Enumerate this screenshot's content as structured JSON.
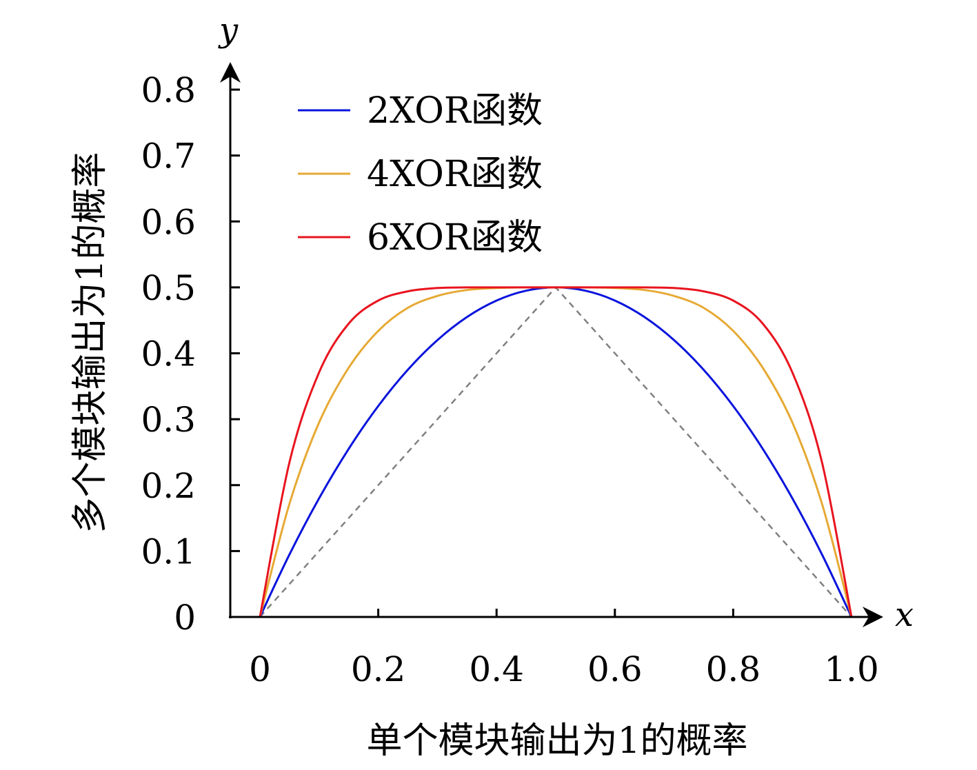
{
  "chart_data": {
    "type": "line",
    "title": "",
    "xlabel": "单个模块输出为1的概率",
    "ylabel": "多个模块输出为1的概率",
    "x_axis_var": "x",
    "y_axis_var": "y",
    "xlim": [
      0,
      1.0
    ],
    "ylim": [
      0,
      0.8
    ],
    "x_ticks": [
      "0",
      "0.2",
      "0.4",
      "0.6",
      "0.8",
      "1.0"
    ],
    "y_ticks": [
      "0",
      "0.1",
      "0.2",
      "0.3",
      "0.4",
      "0.5",
      "0.6",
      "0.7",
      "0.8"
    ],
    "legend_position": "top-left",
    "series": [
      {
        "name": "2XOR函数",
        "color": "#0a14dc",
        "x": [
          0,
          0.05,
          0.1,
          0.15,
          0.2,
          0.25,
          0.3,
          0.35,
          0.4,
          0.45,
          0.5,
          0.55,
          0.6,
          0.65,
          0.7,
          0.75,
          0.8,
          0.85,
          0.9,
          0.95,
          1.0
        ],
        "y": [
          0,
          0.095,
          0.18,
          0.255,
          0.32,
          0.375,
          0.42,
          0.455,
          0.48,
          0.495,
          0.5,
          0.495,
          0.48,
          0.455,
          0.42,
          0.375,
          0.32,
          0.255,
          0.18,
          0.095,
          0
        ]
      },
      {
        "name": "4XOR函数",
        "color": "#e6a933",
        "x": [
          0,
          0.05,
          0.1,
          0.15,
          0.2,
          0.25,
          0.3,
          0.35,
          0.4,
          0.45,
          0.5,
          0.55,
          0.6,
          0.65,
          0.7,
          0.75,
          0.8,
          0.85,
          0.9,
          0.95,
          1.0
        ],
        "y": [
          0,
          0.172,
          0.295,
          0.378,
          0.434,
          0.469,
          0.487,
          0.496,
          0.499,
          0.5,
          0.5,
          0.5,
          0.499,
          0.496,
          0.487,
          0.469,
          0.434,
          0.378,
          0.295,
          0.172,
          0
        ],
        "dashed": false
      },
      {
        "name": "6XOR函数",
        "color": "#e8141e",
        "x": [
          0,
          0.05,
          0.1,
          0.15,
          0.2,
          0.25,
          0.3,
          0.35,
          0.4,
          0.45,
          0.5,
          0.55,
          0.6,
          0.65,
          0.7,
          0.75,
          0.8,
          0.85,
          0.9,
          0.95,
          1.0
        ],
        "y": [
          0,
          0.235,
          0.371,
          0.445,
          0.48,
          0.494,
          0.499,
          0.5,
          0.5,
          0.5,
          0.5,
          0.5,
          0.5,
          0.5,
          0.499,
          0.494,
          0.48,
          0.445,
          0.371,
          0.235,
          0
        ]
      },
      {
        "name": "",
        "color": "#808080",
        "style": "dashed",
        "x": [
          0,
          0.5,
          1.0
        ],
        "y": [
          0,
          0.5,
          0
        ]
      }
    ]
  }
}
